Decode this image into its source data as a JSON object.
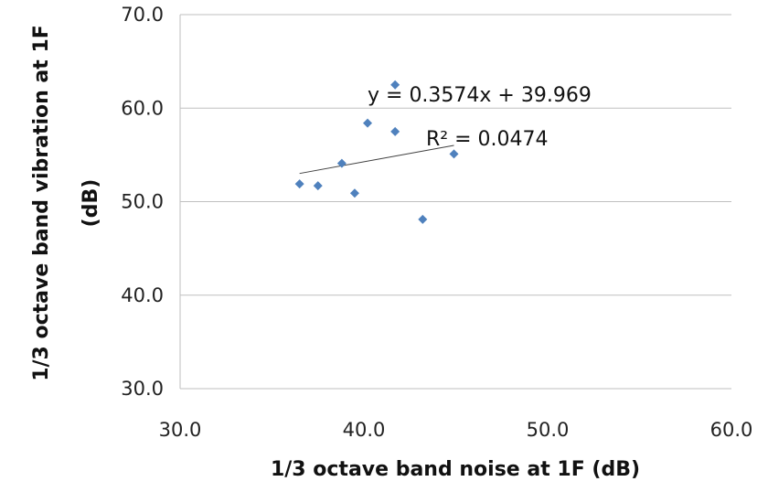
{
  "chart_data": {
    "type": "scatter",
    "title": "",
    "xlabel": "1/3 octave band noise at 1F (dB)",
    "ylabel_line1": "1/3 octave band vibration at 1F",
    "ylabel_line2": "(dB)",
    "xlim": [
      30.0,
      60.0
    ],
    "ylim": [
      30.0,
      70.0
    ],
    "x_ticks": [
      "30.0",
      "40.0",
      "50.0",
      "60.0"
    ],
    "y_ticks": [
      "30.0",
      "40.0",
      "50.0",
      "60.0",
      "70.0"
    ],
    "grid": "horizontal",
    "legend": "none",
    "marker_color": "#4f81bd",
    "trendline_color": "#404040",
    "series": [
      {
        "x": [
          36.5,
          37.5,
          38.8,
          39.5,
          40.2,
          41.7,
          41.7,
          43.2,
          44.9
        ],
        "y": [
          51.9,
          51.7,
          54.1,
          50.9,
          58.4,
          62.5,
          57.5,
          48.1,
          55.1
        ]
      }
    ],
    "trendline": {
      "slope": 0.3574,
      "intercept": 39.969,
      "x_range": [
        36.5,
        44.9
      ],
      "equation": "y = 0.3574x + 39.969",
      "r_squared": "R² = 0.0474"
    }
  }
}
